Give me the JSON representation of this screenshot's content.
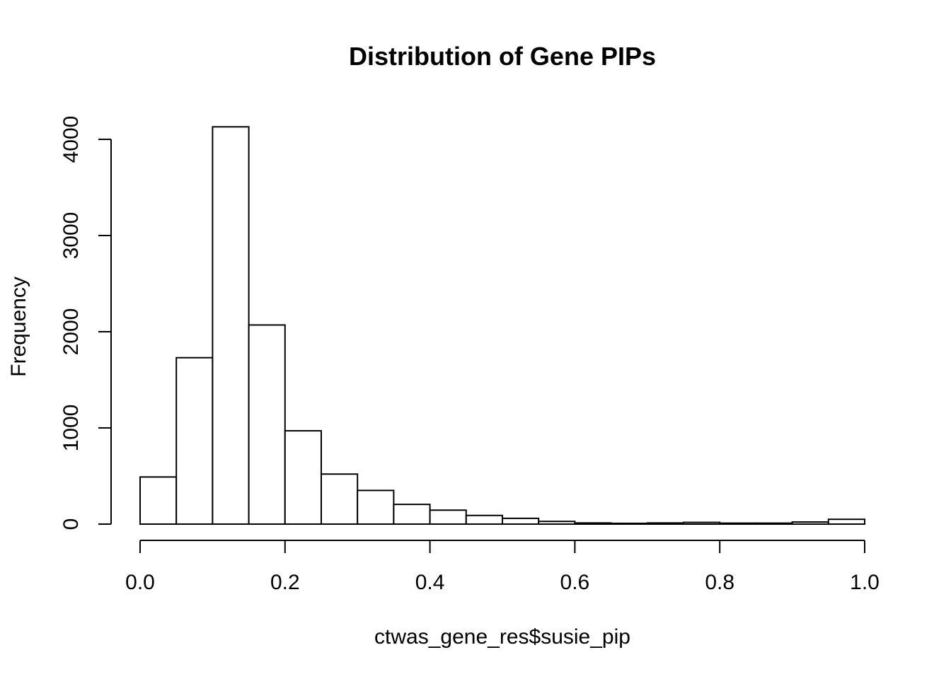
{
  "chart_data": {
    "type": "bar",
    "subtype": "histogram",
    "title": "Distribution of Gene PIPs",
    "xlabel": "ctwas_gene_res$susie_pip",
    "ylabel": "Frequency",
    "xlim": [
      0,
      1
    ],
    "ylim": [
      0,
      4000
    ],
    "x_ticks": [
      "0.0",
      "0.2",
      "0.4",
      "0.6",
      "0.8",
      "1.0"
    ],
    "y_ticks": [
      "0",
      "1000",
      "2000",
      "3000",
      "4000"
    ],
    "bin_width": 0.05,
    "bins": [
      {
        "start": 0.0,
        "end": 0.05,
        "count": 490
      },
      {
        "start": 0.05,
        "end": 0.1,
        "count": 1730
      },
      {
        "start": 0.1,
        "end": 0.15,
        "count": 4130
      },
      {
        "start": 0.15,
        "end": 0.2,
        "count": 2070
      },
      {
        "start": 0.2,
        "end": 0.25,
        "count": 970
      },
      {
        "start": 0.25,
        "end": 0.3,
        "count": 520
      },
      {
        "start": 0.3,
        "end": 0.35,
        "count": 350
      },
      {
        "start": 0.35,
        "end": 0.4,
        "count": 205
      },
      {
        "start": 0.4,
        "end": 0.45,
        "count": 145
      },
      {
        "start": 0.45,
        "end": 0.5,
        "count": 90
      },
      {
        "start": 0.5,
        "end": 0.55,
        "count": 60
      },
      {
        "start": 0.55,
        "end": 0.6,
        "count": 28
      },
      {
        "start": 0.6,
        "end": 0.65,
        "count": 12
      },
      {
        "start": 0.65,
        "end": 0.7,
        "count": 8
      },
      {
        "start": 0.7,
        "end": 0.75,
        "count": 12
      },
      {
        "start": 0.75,
        "end": 0.8,
        "count": 18
      },
      {
        "start": 0.8,
        "end": 0.85,
        "count": 10
      },
      {
        "start": 0.85,
        "end": 0.9,
        "count": 10
      },
      {
        "start": 0.9,
        "end": 0.95,
        "count": 22
      },
      {
        "start": 0.95,
        "end": 1.0,
        "count": 50
      }
    ],
    "grid": false,
    "legend": "none",
    "bar_fill": "#ffffff",
    "bar_stroke": "#000000"
  }
}
